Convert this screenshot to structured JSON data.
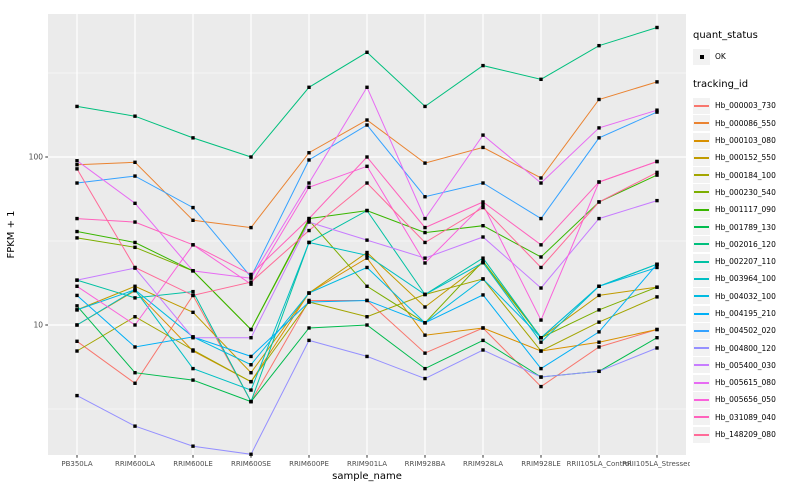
{
  "chart_data": {
    "type": "line",
    "title": "",
    "xlabel": "sample_name",
    "ylabel": "FPKM + 1",
    "y_scale": "log10",
    "y_major_ticks": [
      10,
      100
    ],
    "y_minor_ticks": [
      3.162,
      31.62,
      316.2
    ],
    "ylim": [
      1.6,
      720
    ],
    "grid": "on",
    "panel_background": "#EBEBEB",
    "grid_color": "#FFFFFF",
    "point_color": "#000000",
    "axis_text_color": "#4D4D4D",
    "categories": [
      "PB350LA",
      "RRIM600LA",
      "RRIM600LE",
      "RRIM600SE",
      "RRIM600PE",
      "RRIM901LA",
      "RRIM928BA",
      "RRIM928LA",
      "RRIM928LE",
      "RRII105LA_Control",
      "RRII105LA_Stressed"
    ],
    "series": [
      {
        "name": "Hb_000003_730",
        "color": "#F8766D",
        "values": [
          8,
          4.5,
          15,
          3.5,
          14,
          14,
          6.8,
          9.6,
          4.3,
          7.4,
          9.4
        ]
      },
      {
        "name": "Hb_000086_550",
        "color": "#EA8331",
        "values": [
          90,
          93,
          42,
          38,
          106,
          166,
          92,
          114,
          75,
          220,
          280
        ]
      },
      {
        "name": "Hb_000103_080",
        "color": "#D89000",
        "values": [
          10,
          16,
          7,
          4.6,
          15.5,
          25,
          8.7,
          9.6,
          7,
          7.9,
          9.4
        ]
      },
      {
        "name": "Hb_000152_550",
        "color": "#C09B00",
        "values": [
          12.3,
          17,
          11.9,
          5.2,
          15.5,
          27,
          12.8,
          23.5,
          8.4,
          15,
          16.8
        ]
      },
      {
        "name": "Hb_000184_100",
        "color": "#A3A500",
        "values": [
          7,
          11.2,
          7.1,
          4.6,
          13.7,
          11.2,
          15.2,
          18.8,
          7,
          10.4,
          14.7
        ]
      },
      {
        "name": "Hb_000230_540",
        "color": "#7CAE00",
        "values": [
          33,
          29,
          21,
          9.4,
          42,
          17,
          10.3,
          24,
          8.4,
          12.3,
          16.8
        ]
      },
      {
        "name": "Hb_001117_090",
        "color": "#39B600",
        "values": [
          36,
          31,
          21,
          9.4,
          43,
          48,
          35.5,
          39,
          25.4,
          54,
          78
        ]
      },
      {
        "name": "Hb_001789_130",
        "color": "#00BB4E",
        "values": [
          13,
          5.2,
          4.7,
          3.5,
          9.6,
          10,
          5.5,
          8.1,
          4.9,
          5.3,
          8.4
        ]
      },
      {
        "name": "Hb_002016_120",
        "color": "#00BF7D",
        "values": [
          200,
          175,
          130,
          100,
          260,
          420,
          200,
          350,
          290,
          460,
          590
        ]
      },
      {
        "name": "Hb_002207_110",
        "color": "#00C1A3",
        "values": [
          18.5,
          14.5,
          15.8,
          3.5,
          31,
          48,
          15.2,
          25,
          8.4,
          17,
          23
        ]
      },
      {
        "name": "Hb_003964_100",
        "color": "#00BFC4",
        "values": [
          10,
          16.2,
          5.5,
          4.1,
          31,
          26,
          15.2,
          23.5,
          7.9,
          17,
          23
        ]
      },
      {
        "name": "Hb_004032_100",
        "color": "#00BAE0",
        "values": [
          12.3,
          16.2,
          8.5,
          5.8,
          15.5,
          22,
          10.3,
          18.8,
          8.4,
          17,
          22
        ]
      },
      {
        "name": "Hb_004195_210",
        "color": "#00B0F6",
        "values": [
          15,
          7.4,
          8.5,
          6.5,
          13.7,
          14,
          10.3,
          15.1,
          5.5,
          9.1,
          23
        ]
      },
      {
        "name": "Hb_004502_020",
        "color": "#35A2FF",
        "values": [
          70,
          77,
          50,
          19.3,
          96,
          155,
          58,
          70,
          43,
          130,
          185
        ]
      },
      {
        "name": "Hb_004800_120",
        "color": "#9590FF",
        "values": [
          3.8,
          2.5,
          1.9,
          1.7,
          8.1,
          6.5,
          4.8,
          7.1,
          4.9,
          5.3,
          7.3
        ]
      },
      {
        "name": "Hb_005400_030",
        "color": "#C77CFF",
        "values": [
          18.5,
          21.8,
          8.4,
          8.4,
          41,
          32,
          25,
          33.4,
          16.6,
          43,
          55
        ]
      },
      {
        "name": "Hb_005615_080",
        "color": "#E76BF3",
        "values": [
          95,
          53,
          21,
          19,
          70,
          260,
          43,
          135,
          70,
          149,
          190
        ]
      },
      {
        "name": "Hb_005656_050",
        "color": "#FA62DB",
        "values": [
          17,
          10,
          30,
          17.5,
          66,
          88,
          23.4,
          52,
          10.7,
          71,
          94
        ]
      },
      {
        "name": "Hb_031089_040",
        "color": "#FF62BC",
        "values": [
          43,
          41,
          30,
          20,
          43,
          100,
          38,
          54,
          30,
          71,
          94
        ]
      },
      {
        "name": "Hb_148209_080",
        "color": "#FF6A98",
        "values": [
          85,
          22,
          15,
          18,
          36.5,
          70,
          31,
          50,
          22,
          54,
          81
        ]
      }
    ],
    "legend_position": "right"
  },
  "legend": {
    "quant_status_title": "quant_status",
    "ok_label": "OK",
    "tracking_id_title": "tracking_id"
  },
  "axes": {
    "x_title": "sample_name",
    "y_title": "FPKM + 1",
    "y_tick_labels": [
      "100",
      "10"
    ]
  }
}
